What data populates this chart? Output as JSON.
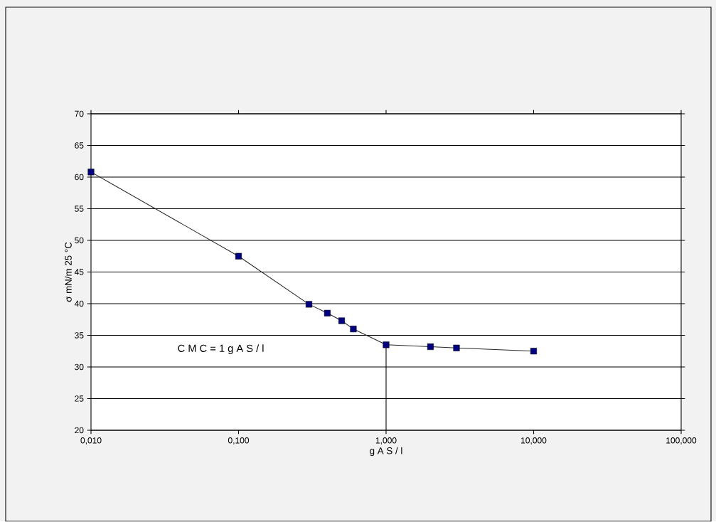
{
  "chart_data": {
    "type": "line",
    "xlabel": "g A S / l",
    "ylabel": "σ mN/m 25 °C",
    "x": [
      0.01,
      0.1,
      0.3,
      0.4,
      0.5,
      0.6,
      1,
      2,
      3,
      10
    ],
    "series": [
      {
        "color": "#000080",
        "values": [
          60.8,
          47.5,
          39.9,
          38.5,
          37.3,
          36.0,
          33.5,
          33.2,
          33.0,
          32.5
        ]
      }
    ],
    "log": "x",
    "xlim": [
      0.01,
      100
    ],
    "ylim": [
      20,
      70
    ],
    "xticks": [
      {
        "value": 0.01,
        "label": "0,010"
      },
      {
        "value": 0.1,
        "label": "0,100"
      },
      {
        "value": 1,
        "label": "1,000"
      },
      {
        "value": 10,
        "label": "10,000"
      },
      {
        "value": 100,
        "label": "100,000"
      }
    ],
    "yticks": [
      20,
      25,
      30,
      35,
      40,
      45,
      50,
      55,
      60,
      65,
      70
    ],
    "grid": "y",
    "marker": "square",
    "line_style": "solid",
    "ref_lines": [
      {
        "axis": "x",
        "value": 1
      }
    ],
    "annotations": [
      "C M C  =  1  g  A S / l"
    ]
  }
}
